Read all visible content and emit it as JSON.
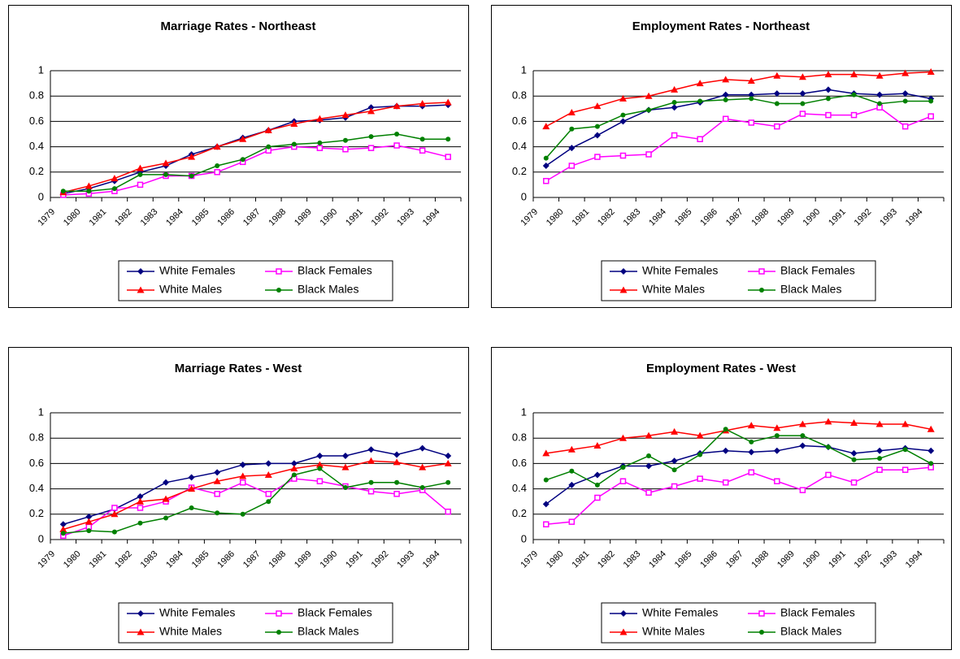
{
  "chart_data": [
    {
      "type": "line",
      "title": "Marriage Rates - Northeast",
      "categories": [
        "1979",
        "1980",
        "1981",
        "1982",
        "1983",
        "1984",
        "1985",
        "1986",
        "1987",
        "1988",
        "1989",
        "1990",
        "1991",
        "1992",
        "1993",
        "1994"
      ],
      "ylim": [
        0,
        1
      ],
      "yticks": [
        0,
        0.2,
        0.4,
        0.6,
        0.8,
        1
      ],
      "grid": true,
      "series": [
        {
          "name": "White Females",
          "color": "#000080",
          "values": [
            0.03,
            0.07,
            0.13,
            0.2,
            0.25,
            0.34,
            0.4,
            0.47,
            0.53,
            0.6,
            0.61,
            0.63,
            0.71,
            0.72,
            0.72,
            0.73
          ]
        },
        {
          "name": "Black Females",
          "color": "#ff00ff",
          "values": [
            0.02,
            0.03,
            0.05,
            0.1,
            0.17,
            0.17,
            0.2,
            0.28,
            0.37,
            0.4,
            0.39,
            0.38,
            0.39,
            0.41,
            0.37,
            0.32
          ]
        },
        {
          "name": "White Males",
          "color": "#ff0000",
          "values": [
            0.04,
            0.09,
            0.15,
            0.23,
            0.27,
            0.32,
            0.4,
            0.46,
            0.53,
            0.58,
            0.62,
            0.65,
            0.68,
            0.72,
            0.74,
            0.75
          ]
        },
        {
          "name": "Black Males",
          "color": "#008000",
          "values": [
            0.05,
            0.05,
            0.07,
            0.18,
            0.18,
            0.17,
            0.25,
            0.3,
            0.4,
            0.42,
            0.43,
            0.45,
            0.48,
            0.5,
            0.46,
            0.46
          ]
        }
      ]
    },
    {
      "type": "line",
      "title": "Employment Rates - Northeast",
      "categories": [
        "1979",
        "1980",
        "1981",
        "1982",
        "1983",
        "1984",
        "1985",
        "1986",
        "1987",
        "1988",
        "1989",
        "1990",
        "1991",
        "1992",
        "1993",
        "1994"
      ],
      "ylim": [
        0,
        1
      ],
      "yticks": [
        0,
        0.2,
        0.4,
        0.6,
        0.8,
        1
      ],
      "grid": true,
      "series": [
        {
          "name": "White Females",
          "color": "#000080",
          "values": [
            0.25,
            0.39,
            0.49,
            0.6,
            0.69,
            0.71,
            0.75,
            0.81,
            0.81,
            0.82,
            0.82,
            0.85,
            0.82,
            0.81,
            0.82,
            0.78
          ]
        },
        {
          "name": "Black Females",
          "color": "#ff00ff",
          "values": [
            0.13,
            0.25,
            0.32,
            0.33,
            0.34,
            0.49,
            0.46,
            0.62,
            0.59,
            0.56,
            0.66,
            0.65,
            0.65,
            0.71,
            0.56,
            0.64
          ]
        },
        {
          "name": "White Males",
          "color": "#ff0000",
          "values": [
            0.56,
            0.67,
            0.72,
            0.78,
            0.8,
            0.85,
            0.9,
            0.93,
            0.92,
            0.96,
            0.95,
            0.97,
            0.97,
            0.96,
            0.98,
            0.99
          ]
        },
        {
          "name": "Black Males",
          "color": "#008000",
          "values": [
            0.31,
            0.54,
            0.56,
            0.65,
            0.69,
            0.75,
            0.76,
            0.77,
            0.78,
            0.74,
            0.74,
            0.78,
            0.81,
            0.74,
            0.76,
            0.76
          ]
        }
      ]
    },
    {
      "type": "line",
      "title": "Marriage Rates - West",
      "categories": [
        "1979",
        "1980",
        "1981",
        "1982",
        "1983",
        "1984",
        "1985",
        "1986",
        "1987",
        "1988",
        "1989",
        "1990",
        "1991",
        "1992",
        "1993",
        "1994"
      ],
      "ylim": [
        0,
        1
      ],
      "yticks": [
        0,
        0.2,
        0.4,
        0.6,
        0.8,
        1
      ],
      "grid": true,
      "series": [
        {
          "name": "White Females",
          "color": "#000080",
          "values": [
            0.12,
            0.18,
            0.24,
            0.34,
            0.45,
            0.49,
            0.53,
            0.59,
            0.6,
            0.6,
            0.66,
            0.66,
            0.71,
            0.67,
            0.72,
            0.66
          ]
        },
        {
          "name": "Black Females",
          "color": "#ff00ff",
          "values": [
            0.03,
            0.1,
            0.25,
            0.25,
            0.3,
            0.41,
            0.36,
            0.45,
            0.36,
            0.48,
            0.46,
            0.42,
            0.38,
            0.36,
            0.39,
            0.22
          ]
        },
        {
          "name": "White Males",
          "color": "#ff0000",
          "values": [
            0.08,
            0.14,
            0.2,
            0.3,
            0.32,
            0.4,
            0.46,
            0.5,
            0.51,
            0.56,
            0.59,
            0.57,
            0.62,
            0.61,
            0.57,
            0.6
          ]
        },
        {
          "name": "Black Males",
          "color": "#008000",
          "values": [
            0.05,
            0.07,
            0.06,
            0.13,
            0.17,
            0.25,
            0.21,
            0.2,
            0.3,
            0.51,
            0.56,
            0.41,
            0.45,
            0.45,
            0.41,
            0.45
          ]
        }
      ]
    },
    {
      "type": "line",
      "title": "Employment Rates - West",
      "categories": [
        "1979",
        "1980",
        "1981",
        "1982",
        "1983",
        "1984",
        "1985",
        "1986",
        "1987",
        "1988",
        "1989",
        "1990",
        "1991",
        "1992",
        "1993",
        "1994"
      ],
      "ylim": [
        0,
        1
      ],
      "yticks": [
        0,
        0.2,
        0.4,
        0.6,
        0.8,
        1
      ],
      "grid": true,
      "series": [
        {
          "name": "White Females",
          "color": "#000080",
          "values": [
            0.28,
            0.43,
            0.51,
            0.58,
            0.58,
            0.62,
            0.68,
            0.7,
            0.69,
            0.7,
            0.74,
            0.73,
            0.68,
            0.7,
            0.72,
            0.7
          ]
        },
        {
          "name": "Black Females",
          "color": "#ff00ff",
          "values": [
            0.12,
            0.14,
            0.33,
            0.46,
            0.37,
            0.42,
            0.48,
            0.45,
            0.53,
            0.46,
            0.39,
            0.51,
            0.45,
            0.55,
            0.55,
            0.57
          ]
        },
        {
          "name": "White Males",
          "color": "#ff0000",
          "values": [
            0.68,
            0.71,
            0.74,
            0.8,
            0.82,
            0.85,
            0.82,
            0.86,
            0.9,
            0.88,
            0.91,
            0.93,
            0.92,
            0.91,
            0.91,
            0.87
          ]
        },
        {
          "name": "Black Males",
          "color": "#008000",
          "values": [
            0.47,
            0.54,
            0.43,
            0.57,
            0.66,
            0.55,
            0.67,
            0.87,
            0.77,
            0.82,
            0.82,
            0.73,
            0.63,
            0.64,
            0.71,
            0.6
          ]
        }
      ]
    }
  ]
}
